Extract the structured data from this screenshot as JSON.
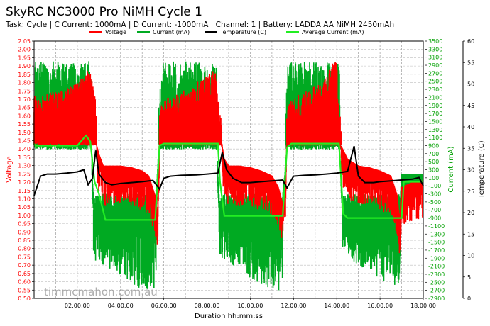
{
  "chart_data": {
    "type": "line",
    "title": "SkyRC NC3000 Pro NiMH Cycle 1",
    "subtitle": "Task: Cycle | C Current: 1000mA | D Current: -1000mA | Channel: 1 | Battery: LADDA AA NiMH 2450mAh",
    "xlabel": "Duration hh:mm:ss",
    "ylabel_left": "Voltage",
    "ylabel_mid": "Current (mA)",
    "ylabel_right": "Temperature (C)",
    "watermark": "timmcmahon.com.au",
    "xlim_hours": [
      0,
      18
    ],
    "x_ticks_hours": [
      2,
      4,
      6,
      8,
      10,
      12,
      14,
      16,
      18
    ],
    "x_tick_labels": [
      "02:00:00",
      "04:00:00",
      "06:00:00",
      "08:00:00",
      "10:00:00",
      "12:00:00",
      "14:00:00",
      "16:00:00",
      "18:00:00"
    ],
    "voltage_axis": {
      "ylim": [
        0.5,
        2.05
      ],
      "step": 0.05,
      "color": "#ff0000"
    },
    "current_axis": {
      "ylim": [
        -2900,
        3500
      ],
      "step": 200,
      "color": "#00a000"
    },
    "temp_axis": {
      "ylim": [
        0,
        60
      ],
      "step": 5,
      "color": "#000000"
    },
    "grid": true,
    "legend_position": "top",
    "legend": [
      {
        "name": "Voltage",
        "color": "#ff0000"
      },
      {
        "name": "Current (mA)",
        "color": "#00aa22"
      },
      {
        "name": "Temperature (C)",
        "color": "#000000"
      },
      {
        "name": "Average Current (mA)",
        "color": "#22ee22"
      }
    ],
    "series": [
      {
        "name": "Voltage",
        "x": [
          0,
          0.2,
          0.5,
          1,
          1.5,
          2,
          2.5,
          2.8,
          2.9,
          3.0,
          3.2,
          3.5,
          4,
          4.5,
          5,
          5.3,
          5.6,
          5.7,
          5.8,
          6.0,
          6.5,
          7,
          7.5,
          8,
          8.4,
          8.6,
          8.7,
          8.8,
          9.0,
          9.5,
          10,
          10.5,
          11,
          11.3,
          11.5,
          11.6,
          11.7,
          11.9,
          12.5,
          13,
          13.5,
          14.0,
          14.1,
          14.2,
          14.5,
          15,
          15.5,
          16,
          16.5,
          16.8,
          16.9,
          17.0,
          17.5,
          18
        ],
        "values": [
          1.57,
          1.52,
          1.55,
          1.57,
          1.59,
          1.62,
          1.7,
          1.62,
          1.4,
          1.35,
          1.28,
          1.28,
          1.28,
          1.27,
          1.25,
          1.22,
          1.1,
          0.97,
          1.48,
          1.53,
          1.55,
          1.58,
          1.62,
          1.67,
          1.7,
          1.45,
          1.4,
          1.32,
          1.28,
          1.28,
          1.27,
          1.25,
          1.22,
          1.15,
          1.05,
          1.1,
          1.48,
          1.53,
          1.56,
          1.6,
          1.66,
          1.78,
          1.45,
          1.4,
          1.32,
          1.28,
          1.27,
          1.25,
          1.22,
          1.1,
          0.95,
          1.15,
          1.18,
          1.19
        ]
      },
      {
        "name": "Current (mA)",
        "x": [
          0,
          0.05,
          2.0,
          2.6,
          2.7,
          2.8,
          3.0,
          3.3,
          4,
          5,
          5.6,
          5.7,
          5.8,
          6.0,
          8.4,
          8.5,
          8.6,
          8.8,
          9.5,
          10.5,
          11.4,
          11.6,
          11.7,
          11.8,
          14.1,
          14.2,
          14.3,
          14.5,
          15.0,
          16.0,
          16.9,
          17.0,
          17.1,
          18
        ],
        "values": [
          1000,
          2000,
          2000,
          2000,
          -150,
          -1000,
          -1000,
          -1000,
          -1000,
          -1000,
          -1000,
          0,
          1000,
          2000,
          2000,
          0,
          -1000,
          -1000,
          -1000,
          -1000,
          -1000,
          0,
          1000,
          2000,
          2000,
          0,
          -1000,
          -1000,
          -1000,
          -1000,
          -1000,
          0,
          0,
          0
        ]
      },
      {
        "name": "Temperature (C)",
        "x": [
          0,
          0.3,
          0.6,
          1,
          1.5,
          2,
          2.3,
          2.5,
          2.7,
          2.85,
          3.0,
          3.3,
          3.6,
          4,
          4.5,
          5,
          5.5,
          5.8,
          6.0,
          6.3,
          6.8,
          7.5,
          8,
          8.5,
          8.7,
          8.9,
          9.2,
          9.6,
          10,
          10.5,
          11,
          11.5,
          11.7,
          12.0,
          12.5,
          13,
          13.5,
          14,
          14.5,
          14.8,
          15.0,
          15.3,
          15.7,
          16,
          16.5,
          17,
          17.5,
          17.8,
          18
        ],
        "values": [
          24,
          28.5,
          29,
          29,
          29.2,
          29.5,
          30,
          26.5,
          28,
          34.5,
          29,
          27,
          26.5,
          26.8,
          27,
          27.2,
          27.5,
          25.5,
          28,
          28.5,
          28.7,
          28.8,
          29,
          29.2,
          34,
          30,
          28,
          27,
          27,
          27.2,
          27.4,
          27.6,
          25.8,
          28.5,
          28.7,
          28.8,
          29,
          29.2,
          29.6,
          35.5,
          28.5,
          27,
          27,
          27.2,
          27.4,
          27.6,
          27.8,
          28.2,
          26.3
        ]
      },
      {
        "name": "Average Current (mA)",
        "x": [
          0,
          0.05,
          1,
          2,
          2.4,
          2.6,
          2.8,
          3.0,
          3.3,
          4,
          5,
          5.6,
          5.8,
          6.0,
          7,
          8.5,
          8.6,
          8.8,
          9.5,
          10.5,
          11.5,
          11.7,
          11.9,
          12.5,
          13.5,
          14.1,
          14.3,
          14.5,
          15.5,
          16.5,
          17.0,
          17.1,
          18
        ],
        "values": [
          950,
          900,
          900,
          900,
          1150,
          1000,
          0,
          -300,
          -950,
          -950,
          -950,
          -950,
          900,
          950,
          950,
          950,
          0,
          -850,
          -850,
          -850,
          -850,
          850,
          950,
          950,
          950,
          950,
          -800,
          -900,
          -900,
          -900,
          -900,
          0,
          0
        ]
      }
    ]
  }
}
